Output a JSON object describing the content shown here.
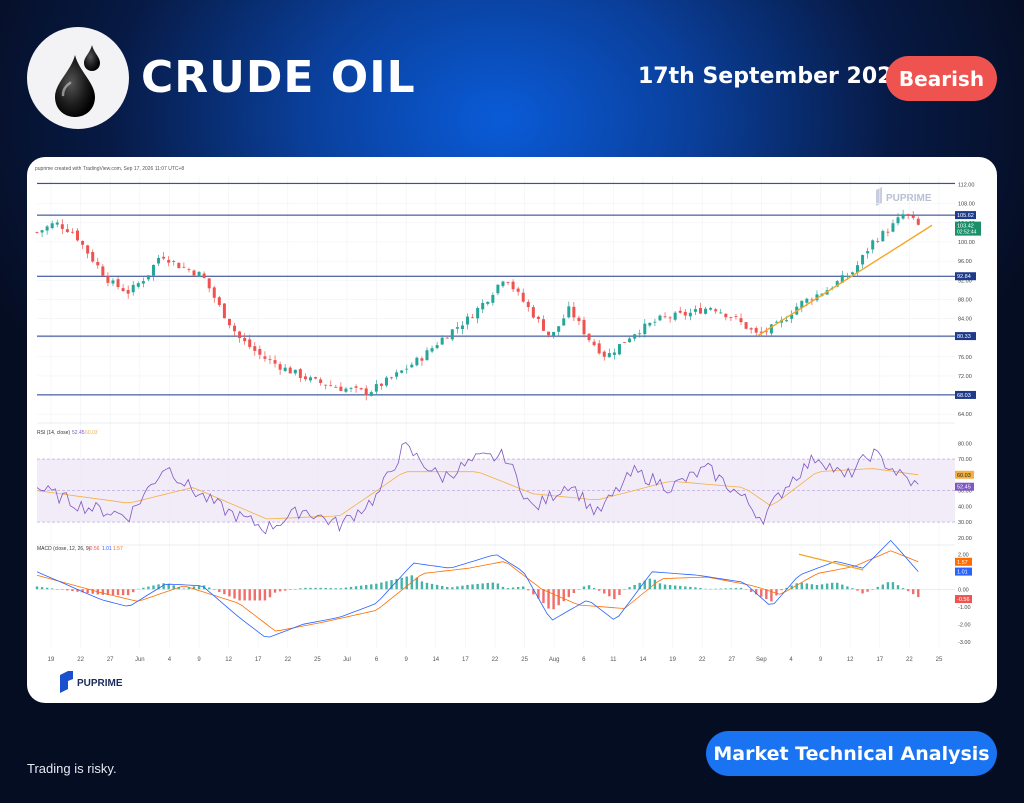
{
  "header": {
    "title": "CRUDE OIL",
    "date": "17th September 2026",
    "bias": "Bearish"
  },
  "footer": {
    "disclaimer": "Trading is risky.",
    "cta": "Market Technical Analysis"
  },
  "chart_meta": {
    "credit": "puprime created with TradingView.com, Sep 17, 2026 11:07 UTC+8",
    "watermark": "PUPRIME",
    "footer_brand": "PUPRIME"
  },
  "colors": {
    "bias_badge": "#ef5350",
    "cta_button": "#1a73f0",
    "candle_up": "#26a69a",
    "candle_down": "#ef5350",
    "level_line": "#1e3a8a",
    "trendline": "#f5a623",
    "rsi_line": "#7e57c2",
    "rsi_ma": "#f5b041",
    "macd_line": "#2962ff",
    "signal_line": "#ff6d00"
  },
  "chart_data": [
    {
      "type": "candlestick",
      "title": "",
      "x_ticks": [
        "19",
        "22",
        "27",
        "Jun",
        "4",
        "9",
        "12",
        "17",
        "22",
        "25",
        "Jul",
        "6",
        "9",
        "14",
        "17",
        "22",
        "25",
        "Aug",
        "6",
        "11",
        "14",
        "19",
        "22",
        "27",
        "Sep",
        "4",
        "9",
        "12",
        "17",
        "22",
        "25"
      ],
      "y_ticks": [
        64.0,
        68.0,
        72.0,
        76.0,
        80.0,
        84.0,
        88.0,
        92.0,
        96.0,
        100.0,
        104.0,
        108.0,
        112.0
      ],
      "ylim": [
        63,
        114
      ],
      "levels": [
        112.25,
        105.62,
        92.84,
        80.33,
        68.03
      ],
      "level_labels": [
        "105.62",
        "92.84",
        "80.33",
        "68.03"
      ],
      "last_price": "103.42",
      "countdown": "02:52:44",
      "top_price_labels": [
        "105.62",
        "104.00",
        "103.42",
        "100.00"
      ],
      "close_path": [
        {
          "t": 0,
          "c": 102.0
        },
        {
          "t": 0.02,
          "c": 104.0
        },
        {
          "t": 0.04,
          "c": 102.0
        },
        {
          "t": 0.06,
          "c": 96.5
        },
        {
          "t": 0.08,
          "c": 91.5
        },
        {
          "t": 0.1,
          "c": 89.5
        },
        {
          "t": 0.12,
          "c": 93.0
        },
        {
          "t": 0.135,
          "c": 97.5
        },
        {
          "t": 0.155,
          "c": 95.0
        },
        {
          "t": 0.18,
          "c": 93.0
        },
        {
          "t": 0.2,
          "c": 86.0
        },
        {
          "t": 0.22,
          "c": 80.0
        },
        {
          "t": 0.245,
          "c": 76.0
        },
        {
          "t": 0.27,
          "c": 73.5
        },
        {
          "t": 0.3,
          "c": 71.0
        },
        {
          "t": 0.33,
          "c": 69.5
        },
        {
          "t": 0.36,
          "c": 68.5
        },
        {
          "t": 0.39,
          "c": 72.0
        },
        {
          "t": 0.42,
          "c": 76.0
        },
        {
          "t": 0.445,
          "c": 80.5
        },
        {
          "t": 0.47,
          "c": 84.0
        },
        {
          "t": 0.49,
          "c": 88.0
        },
        {
          "t": 0.51,
          "c": 93.0
        },
        {
          "t": 0.52,
          "c": 90.0
        },
        {
          "t": 0.54,
          "c": 85.0
        },
        {
          "t": 0.56,
          "c": 80.0
        },
        {
          "t": 0.58,
          "c": 86.0
        },
        {
          "t": 0.6,
          "c": 80.0
        },
        {
          "t": 0.62,
          "c": 76.0
        },
        {
          "t": 0.65,
          "c": 81.0
        },
        {
          "t": 0.68,
          "c": 84.0
        },
        {
          "t": 0.71,
          "c": 85.0
        },
        {
          "t": 0.735,
          "c": 86.5
        },
        {
          "t": 0.76,
          "c": 84.0
        },
        {
          "t": 0.785,
          "c": 80.5
        },
        {
          "t": 0.81,
          "c": 83.0
        },
        {
          "t": 0.83,
          "c": 87.0
        },
        {
          "t": 0.86,
          "c": 90.0
        },
        {
          "t": 0.89,
          "c": 94.0
        },
        {
          "t": 0.91,
          "c": 100.0
        },
        {
          "t": 0.93,
          "c": 103.0
        },
        {
          "t": 0.945,
          "c": 106.0
        },
        {
          "t": 0.96,
          "c": 103.4
        }
      ],
      "trendline": [
        {
          "t": 0.786,
          "c": 80.5
        },
        {
          "t": 0.975,
          "c": 103.5
        }
      ]
    },
    {
      "type": "line",
      "title": "RSI (14, close)",
      "legend_values": [
        "52.45",
        "60.03"
      ],
      "y_ticks": [
        20.0,
        30.0,
        40.0,
        50.0,
        60.0,
        70.0,
        80.0
      ],
      "ylim": [
        18,
        84
      ],
      "band": [
        30,
        70
      ],
      "last_values": [
        "60.03",
        "52.45"
      ],
      "series": [
        {
          "name": "RSI",
          "points": [
            {
              "t": 0,
              "v": 52
            },
            {
              "t": 0.05,
              "v": 40
            },
            {
              "t": 0.1,
              "v": 34
            },
            {
              "t": 0.14,
              "v": 66
            },
            {
              "t": 0.17,
              "v": 50
            },
            {
              "t": 0.21,
              "v": 36
            },
            {
              "t": 0.25,
              "v": 26
            },
            {
              "t": 0.29,
              "v": 38
            },
            {
              "t": 0.33,
              "v": 28
            },
            {
              "t": 0.37,
              "v": 46
            },
            {
              "t": 0.4,
              "v": 78
            },
            {
              "t": 0.44,
              "v": 58
            },
            {
              "t": 0.48,
              "v": 70
            },
            {
              "t": 0.51,
              "v": 72
            },
            {
              "t": 0.54,
              "v": 38
            },
            {
              "t": 0.58,
              "v": 55
            },
            {
              "t": 0.61,
              "v": 35
            },
            {
              "t": 0.65,
              "v": 62
            },
            {
              "t": 0.69,
              "v": 52
            },
            {
              "t": 0.73,
              "v": 64
            },
            {
              "t": 0.77,
              "v": 45
            },
            {
              "t": 0.79,
              "v": 32
            },
            {
              "t": 0.82,
              "v": 56
            },
            {
              "t": 0.85,
              "v": 72
            },
            {
              "t": 0.88,
              "v": 58
            },
            {
              "t": 0.91,
              "v": 74
            },
            {
              "t": 0.94,
              "v": 60
            },
            {
              "t": 0.96,
              "v": 52.45
            }
          ]
        },
        {
          "name": "RSI-based MA",
          "points": [
            {
              "t": 0,
              "v": 50
            },
            {
              "t": 0.1,
              "v": 42
            },
            {
              "t": 0.17,
              "v": 52
            },
            {
              "t": 0.25,
              "v": 32
            },
            {
              "t": 0.33,
              "v": 34
            },
            {
              "t": 0.4,
              "v": 62
            },
            {
              "t": 0.48,
              "v": 62
            },
            {
              "t": 0.54,
              "v": 48
            },
            {
              "t": 0.61,
              "v": 44
            },
            {
              "t": 0.69,
              "v": 56
            },
            {
              "t": 0.77,
              "v": 52
            },
            {
              "t": 0.8,
              "v": 40
            },
            {
              "t": 0.85,
              "v": 62
            },
            {
              "t": 0.91,
              "v": 64
            },
            {
              "t": 0.96,
              "v": 60.03
            }
          ]
        }
      ]
    },
    {
      "type": "line",
      "title": "MACD (close, 12, 26, 9)",
      "legend_values": [
        "-0.56",
        "1.01",
        "1.57"
      ],
      "y_ticks": [
        -3.0,
        -2.0,
        -1.0,
        0.0,
        1.0,
        2.0
      ],
      "ylim": [
        -3.3,
        2.3
      ],
      "last_values": [
        "1.57",
        "1.01",
        "-0.56"
      ],
      "series": [
        {
          "name": "MACD",
          "points": [
            {
              "t": 0,
              "v": 1.0
            },
            {
              "t": 0.07,
              "v": -0.6
            },
            {
              "t": 0.1,
              "v": -1.0
            },
            {
              "t": 0.14,
              "v": 0.3
            },
            {
              "t": 0.18,
              "v": 0.2
            },
            {
              "t": 0.22,
              "v": -1.6
            },
            {
              "t": 0.25,
              "v": -2.8
            },
            {
              "t": 0.29,
              "v": -2.0
            },
            {
              "t": 0.33,
              "v": -1.6
            },
            {
              "t": 0.37,
              "v": -0.8
            },
            {
              "t": 0.41,
              "v": 1.5
            },
            {
              "t": 0.45,
              "v": 1.2
            },
            {
              "t": 0.5,
              "v": 2.0
            },
            {
              "t": 0.53,
              "v": 1.0
            },
            {
              "t": 0.56,
              "v": -1.8
            },
            {
              "t": 0.6,
              "v": -0.6
            },
            {
              "t": 0.63,
              "v": -1.8
            },
            {
              "t": 0.67,
              "v": 1.0
            },
            {
              "t": 0.72,
              "v": 0.8
            },
            {
              "t": 0.77,
              "v": 0.4
            },
            {
              "t": 0.8,
              "v": -1.0
            },
            {
              "t": 0.83,
              "v": 0.8
            },
            {
              "t": 0.87,
              "v": 1.6
            },
            {
              "t": 0.9,
              "v": 1.2
            },
            {
              "t": 0.93,
              "v": 2.8
            },
            {
              "t": 0.96,
              "v": 1.01
            }
          ]
        },
        {
          "name": "Signal",
          "points": [
            {
              "t": 0,
              "v": 0.8
            },
            {
              "t": 0.07,
              "v": -0.2
            },
            {
              "t": 0.11,
              "v": -0.7
            },
            {
              "t": 0.16,
              "v": 0.2
            },
            {
              "t": 0.22,
              "v": -0.8
            },
            {
              "t": 0.26,
              "v": -2.4
            },
            {
              "t": 0.31,
              "v": -1.9
            },
            {
              "t": 0.37,
              "v": -1.2
            },
            {
              "t": 0.42,
              "v": 0.9
            },
            {
              "t": 0.47,
              "v": 1.2
            },
            {
              "t": 0.51,
              "v": 1.6
            },
            {
              "t": 0.55,
              "v": 0.0
            },
            {
              "t": 0.59,
              "v": -0.9
            },
            {
              "t": 0.64,
              "v": -1.1
            },
            {
              "t": 0.68,
              "v": 0.6
            },
            {
              "t": 0.73,
              "v": 0.7
            },
            {
              "t": 0.78,
              "v": 0.2
            },
            {
              "t": 0.81,
              "v": -0.3
            },
            {
              "t": 0.85,
              "v": 0.9
            },
            {
              "t": 0.89,
              "v": 1.3
            },
            {
              "t": 0.93,
              "v": 2.2
            },
            {
              "t": 0.96,
              "v": 1.57
            }
          ]
        }
      ],
      "divergence_line": [
        {
          "t": 0.83,
          "v": 2.0
        },
        {
          "t": 0.9,
          "v": 1.1
        }
      ]
    }
  ]
}
